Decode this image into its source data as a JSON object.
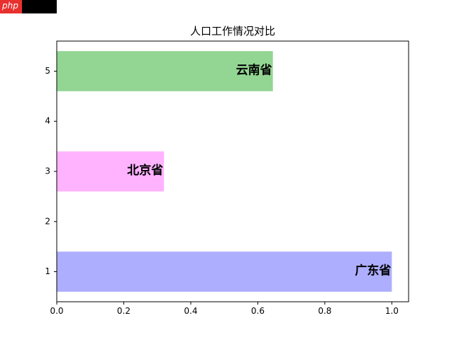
{
  "watermark": {
    "text": "php"
  },
  "chart_data": {
    "type": "bar",
    "orientation": "horizontal",
    "title": "人口工作情况对比",
    "xlabel": "",
    "ylabel": "",
    "xlim": [
      0,
      1.05
    ],
    "ylim": [
      0.4,
      5.6
    ],
    "xticks": [
      "0.0",
      "0.2",
      "0.4",
      "0.6",
      "0.8",
      "1.0"
    ],
    "yticks": [
      "1",
      "2",
      "3",
      "4",
      "5"
    ],
    "grid": false,
    "bars": [
      {
        "y": 1,
        "value": 1.0,
        "label": "广东省",
        "color": "#aeaeff"
      },
      {
        "y": 3,
        "value": 0.32,
        "label": "北京省",
        "color": "#ffb3ff"
      },
      {
        "y": 5,
        "value": 0.645,
        "label": "云南省",
        "color": "#93d593"
      }
    ]
  }
}
